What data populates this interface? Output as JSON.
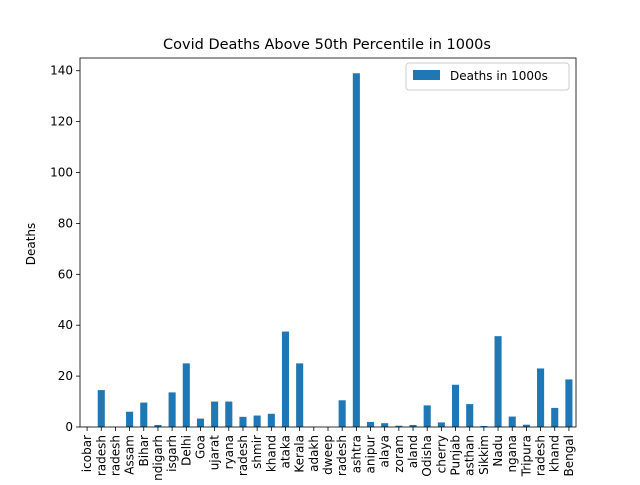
{
  "chart_data": {
    "type": "bar",
    "title": "Covid Deaths Above 50th Percentile in 1000s",
    "xlabel": "",
    "ylabel": "Deaths",
    "ylim": [
      0,
      145
    ],
    "yticks": [
      0,
      20,
      40,
      60,
      80,
      100,
      120,
      140
    ],
    "grid": false,
    "legend_position": "top-right",
    "bar_color": "#1f77b4",
    "categories": [
      "icobar",
      "radesh",
      "radesh",
      "Assam",
      "Bihar",
      "ndigarh",
      "isgarh",
      "Delhi",
      "Goa",
      "ujarat",
      "ryana",
      "radesh",
      "shmir",
      "khand",
      "ataka",
      "Kerala",
      "adakh",
      "dweep",
      "radesh",
      "ashtra",
      "anipur",
      "alaya",
      "zoram",
      "aland",
      "Odisha",
      "cherry",
      "Punjab",
      "asthan",
      "Sikkim",
      "Nadu",
      "ngana",
      "Tripura",
      "radesh",
      "khand",
      "Bengal"
    ],
    "series": [
      {
        "name": "Deaths in 1000s",
        "values": [
          0.13,
          14.5,
          0.05,
          6.0,
          9.6,
          0.8,
          13.6,
          25.0,
          3.3,
          10.0,
          10.0,
          4.0,
          4.5,
          5.2,
          37.5,
          25.0,
          0.13,
          0.05,
          10.5,
          139.0,
          2.0,
          1.5,
          0.5,
          0.8,
          8.5,
          1.8,
          16.6,
          9.0,
          0.4,
          35.7,
          4.1,
          0.9,
          23.0,
          7.5,
          18.7
        ]
      }
    ]
  }
}
